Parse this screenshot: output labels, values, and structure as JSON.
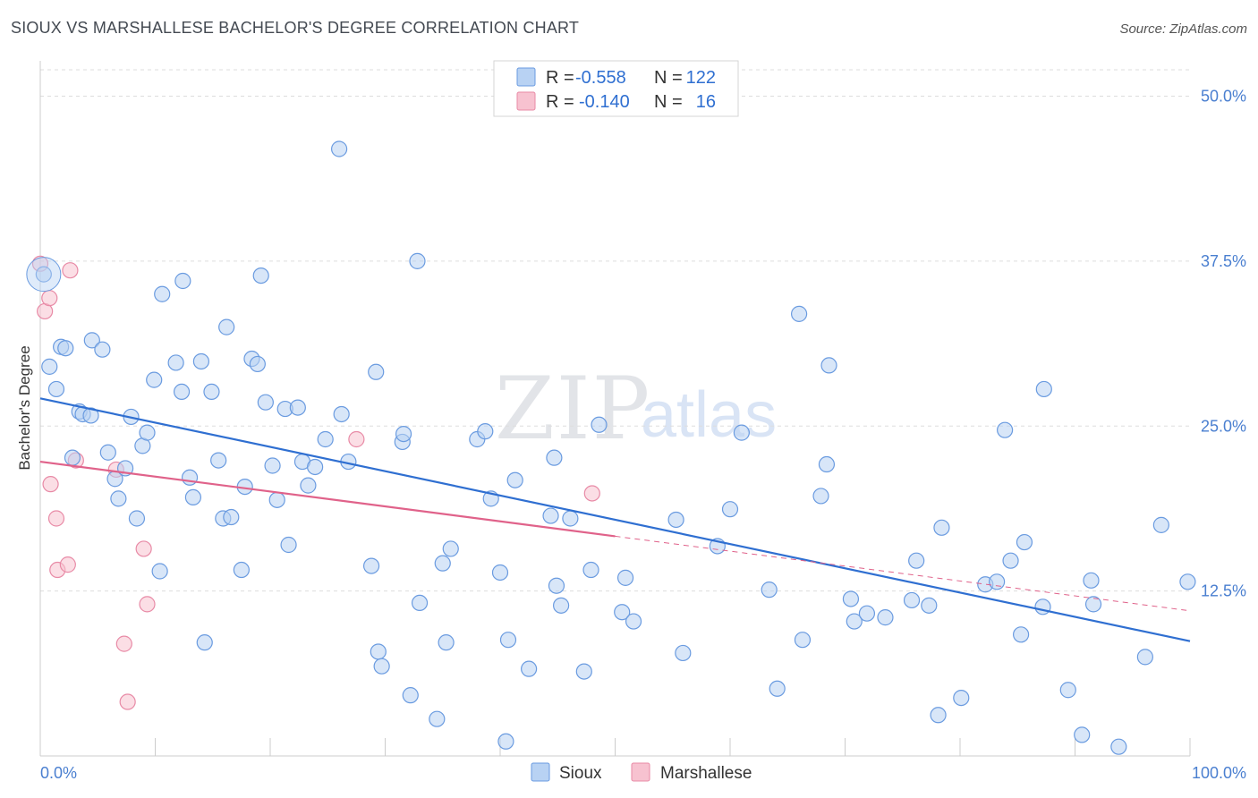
{
  "title": "SIOUX VS MARSHALLESE BACHELOR'S DEGREE CORRELATION CHART",
  "source": "Source: ZipAtlas.com",
  "watermark": {
    "zip": "ZIP",
    "atlas": "atlas"
  },
  "colors": {
    "sioux_fill": "#b8d2f3",
    "sioux_stroke": "#6a9be0",
    "sioux_line": "#2f6fd1",
    "marsh_fill": "#f7c2d0",
    "marsh_stroke": "#e88aa6",
    "marsh_line": "#e0628a",
    "axis_text": "#4a7fd0",
    "grid": "#dddddd"
  },
  "legend": {
    "rows": [
      {
        "r_label": "R =",
        "r_value": "-0.558",
        "n_label": "N =",
        "n_value": "122"
      },
      {
        "r_label": "R =",
        "r_value": "-0.140",
        "n_label": "N =",
        "n_value": "16"
      }
    ]
  },
  "chart_data": {
    "type": "scatter",
    "xlabel": "",
    "ylabel": "Bachelor's Degree",
    "xlim": [
      0,
      100
    ],
    "ylim": [
      0,
      52
    ],
    "x_tick_labels": [
      {
        "value": 0,
        "label": "0.0%"
      },
      {
        "value": 100,
        "label": "100.0%"
      }
    ],
    "y_tick_labels": [
      {
        "value": 12.5,
        "label": "12.5%"
      },
      {
        "value": 25,
        "label": "25.0%"
      },
      {
        "value": 37.5,
        "label": "37.5%"
      },
      {
        "value": 50,
        "label": "50.0%"
      }
    ],
    "series": [
      {
        "name": "Sioux",
        "trend": {
          "x0": 0,
          "y0": 27.1,
          "x1": 100,
          "y1": 8.7,
          "solid_until": 100
        },
        "points": [
          [
            0.3,
            36.5
          ],
          [
            0.8,
            29.5
          ],
          [
            1.4,
            27.8
          ],
          [
            1.8,
            31.0
          ],
          [
            2.2,
            30.9
          ],
          [
            2.8,
            22.6
          ],
          [
            3.4,
            26.1
          ],
          [
            3.7,
            25.9
          ],
          [
            4.4,
            25.8
          ],
          [
            4.5,
            31.5
          ],
          [
            5.4,
            30.8
          ],
          [
            5.9,
            23.0
          ],
          [
            6.5,
            21.0
          ],
          [
            6.8,
            19.5
          ],
          [
            7.4,
            21.8
          ],
          [
            7.9,
            25.7
          ],
          [
            8.4,
            18.0
          ],
          [
            8.9,
            23.5
          ],
          [
            9.3,
            24.5
          ],
          [
            9.9,
            28.5
          ],
          [
            10.4,
            14.0
          ],
          [
            10.6,
            35.0
          ],
          [
            11.8,
            29.8
          ],
          [
            12.3,
            27.6
          ],
          [
            12.4,
            36.0
          ],
          [
            13.0,
            21.1
          ],
          [
            13.3,
            19.6
          ],
          [
            14.0,
            29.9
          ],
          [
            14.3,
            8.6
          ],
          [
            14.9,
            27.6
          ],
          [
            15.5,
            22.4
          ],
          [
            15.9,
            18.0
          ],
          [
            16.2,
            32.5
          ],
          [
            16.6,
            18.1
          ],
          [
            17.5,
            14.1
          ],
          [
            17.8,
            20.4
          ],
          [
            18.4,
            30.1
          ],
          [
            18.9,
            29.7
          ],
          [
            19.2,
            36.4
          ],
          [
            19.6,
            26.8
          ],
          [
            20.2,
            22.0
          ],
          [
            20.6,
            19.4
          ],
          [
            21.3,
            26.3
          ],
          [
            21.6,
            16.0
          ],
          [
            22.4,
            26.4
          ],
          [
            22.8,
            22.3
          ],
          [
            23.3,
            20.5
          ],
          [
            23.9,
            21.9
          ],
          [
            24.8,
            24.0
          ],
          [
            26.0,
            46.0
          ],
          [
            26.2,
            25.9
          ],
          [
            26.8,
            22.3
          ],
          [
            28.8,
            14.4
          ],
          [
            29.2,
            29.1
          ],
          [
            29.4,
            7.9
          ],
          [
            29.7,
            6.8
          ],
          [
            31.5,
            23.8
          ],
          [
            31.6,
            24.4
          ],
          [
            32.2,
            4.6
          ],
          [
            32.8,
            37.5
          ],
          [
            33.0,
            11.6
          ],
          [
            34.5,
            2.8
          ],
          [
            35.0,
            14.6
          ],
          [
            35.3,
            8.6
          ],
          [
            35.7,
            15.7
          ],
          [
            38.0,
            24.0
          ],
          [
            38.7,
            24.6
          ],
          [
            39.2,
            19.5
          ],
          [
            40.0,
            13.9
          ],
          [
            40.5,
            1.1
          ],
          [
            40.7,
            8.8
          ],
          [
            41.3,
            20.9
          ],
          [
            42.5,
            6.6
          ],
          [
            44.4,
            18.2
          ],
          [
            44.7,
            22.6
          ],
          [
            44.9,
            12.9
          ],
          [
            45.3,
            11.4
          ],
          [
            46.1,
            18.0
          ],
          [
            47.3,
            6.4
          ],
          [
            47.9,
            14.1
          ],
          [
            48.6,
            25.1
          ],
          [
            50.6,
            10.9
          ],
          [
            50.9,
            13.5
          ],
          [
            51.6,
            10.2
          ],
          [
            55.3,
            17.9
          ],
          [
            55.9,
            7.8
          ],
          [
            58.9,
            15.9
          ],
          [
            60.0,
            18.7
          ],
          [
            61.0,
            24.5
          ],
          [
            63.4,
            12.6
          ],
          [
            64.1,
            5.1
          ],
          [
            66.0,
            33.5
          ],
          [
            66.3,
            8.8
          ],
          [
            67.9,
            19.7
          ],
          [
            68.4,
            22.1
          ],
          [
            68.6,
            29.6
          ],
          [
            70.5,
            11.9
          ],
          [
            70.8,
            10.2
          ],
          [
            71.9,
            10.8
          ],
          [
            73.5,
            10.5
          ],
          [
            75.8,
            11.8
          ],
          [
            76.2,
            14.8
          ],
          [
            77.3,
            11.4
          ],
          [
            78.1,
            3.1
          ],
          [
            78.4,
            17.3
          ],
          [
            80.1,
            4.4
          ],
          [
            82.2,
            13.0
          ],
          [
            83.2,
            13.2
          ],
          [
            83.9,
            24.7
          ],
          [
            84.4,
            14.8
          ],
          [
            85.3,
            9.2
          ],
          [
            85.6,
            16.2
          ],
          [
            87.2,
            11.3
          ],
          [
            87.3,
            27.8
          ],
          [
            89.4,
            5.0
          ],
          [
            90.6,
            1.6
          ],
          [
            91.4,
            13.3
          ],
          [
            91.6,
            11.5
          ],
          [
            93.8,
            0.7
          ],
          [
            96.1,
            7.5
          ],
          [
            97.5,
            17.5
          ],
          [
            99.8,
            13.2
          ]
        ]
      },
      {
        "name": "Marshallese",
        "trend": {
          "x0": 0,
          "y0": 22.3,
          "x1": 100,
          "y1": 11.0,
          "solid_until": 50
        },
        "points": [
          [
            0.0,
            37.3
          ],
          [
            0.4,
            33.7
          ],
          [
            0.8,
            34.7
          ],
          [
            0.9,
            20.6
          ],
          [
            1.4,
            18.0
          ],
          [
            1.5,
            14.1
          ],
          [
            2.4,
            14.5
          ],
          [
            2.6,
            36.8
          ],
          [
            3.1,
            22.4
          ],
          [
            6.6,
            21.7
          ],
          [
            7.3,
            8.5
          ],
          [
            7.6,
            4.1
          ],
          [
            9.0,
            15.7
          ],
          [
            9.3,
            11.5
          ],
          [
            27.5,
            24.0
          ],
          [
            48.0,
            19.9
          ]
        ]
      }
    ]
  },
  "bottom_legend": [
    {
      "label": "Sioux"
    },
    {
      "label": "Marshallese"
    }
  ]
}
